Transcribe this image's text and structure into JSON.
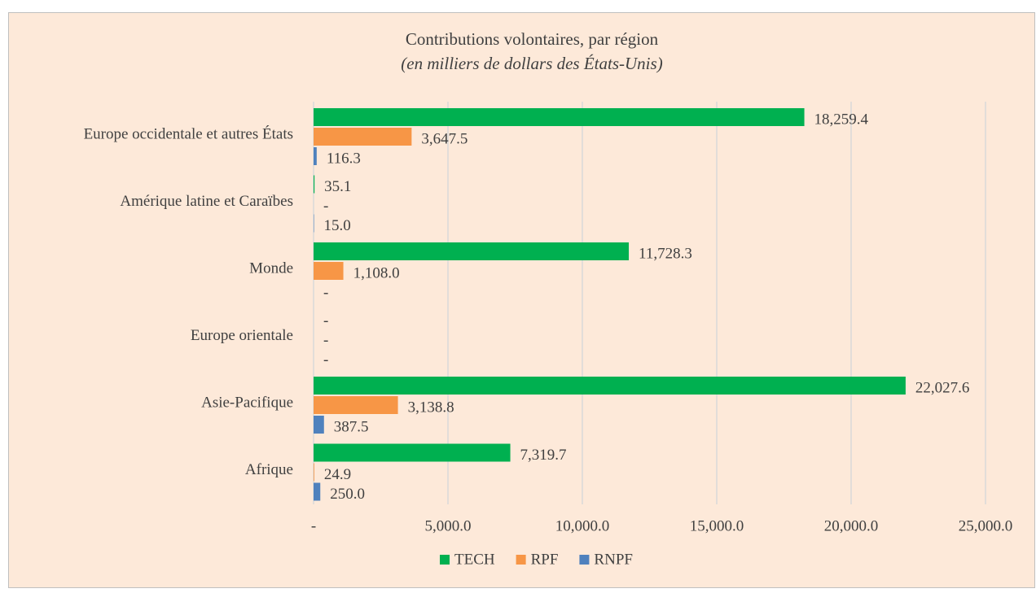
{
  "chart_data": {
    "type": "barh",
    "title": "Contributions volontaires, par région",
    "subtitle": "(en milliers de dollars des États-Unis)",
    "categories": [
      "Europe occidentale et autres États",
      "Amérique latine et Caraïbes",
      "Monde",
      "Europe orientale",
      "Asie-Pacifique",
      "Afrique"
    ],
    "series": [
      {
        "name": "TECH",
        "color": "#00b050",
        "values": [
          18259.4,
          35.1,
          11728.3,
          0,
          22027.6,
          7319.7
        ],
        "value_labels": [
          "18,259.4",
          "35.1",
          "11,728.3",
          "-",
          "22,027.6",
          "7,319.7"
        ]
      },
      {
        "name": "RPF",
        "color": "#f79646",
        "values": [
          3647.5,
          0,
          1108.0,
          0,
          3138.8,
          24.9
        ],
        "value_labels": [
          "3,647.5",
          "-",
          "1,108.0",
          "-",
          "3,138.8",
          "24.9"
        ]
      },
      {
        "name": "RNPF",
        "color": "#4f81bd",
        "values": [
          116.3,
          15.0,
          0,
          0,
          387.5,
          250.0
        ],
        "value_labels": [
          "116.3",
          "15.0",
          "-",
          "-",
          "387.5",
          "250.0"
        ]
      }
    ],
    "xlim": [
      0,
      25000
    ],
    "xticks": [
      {
        "value": 0,
        "label": "-"
      },
      {
        "value": 5000,
        "label": "5,000.0"
      },
      {
        "value": 10000,
        "label": "10,000.0"
      },
      {
        "value": 15000,
        "label": "15,000.0"
      },
      {
        "value": 20000,
        "label": "20,000.0"
      },
      {
        "value": 25000,
        "label": "25,000.0"
      }
    ],
    "grid": true,
    "legend": "bottom"
  }
}
